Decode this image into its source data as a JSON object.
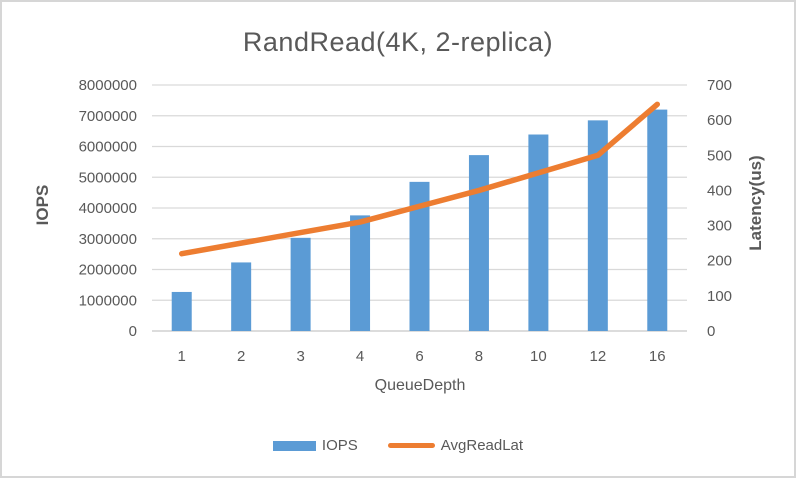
{
  "frame": {
    "background": "#ffffff",
    "border_color": "#d6d6d6"
  },
  "chart_data": {
    "type": "bar+line combo",
    "title": "RandRead(4K, 2-replica)",
    "categories": [
      "1",
      "2",
      "3",
      "4",
      "6",
      "8",
      "10",
      "12",
      "16"
    ],
    "xlabel": "QueueDepth",
    "series": [
      {
        "name": "IOPS",
        "type": "bar",
        "axis": "left",
        "color": "#5B9BD5",
        "values": [
          1270000,
          2230000,
          3030000,
          3760000,
          4850000,
          5720000,
          6390000,
          6850000,
          7200000
        ]
      },
      {
        "name": "AvgReadLat",
        "type": "line",
        "axis": "right",
        "color": "#ED7D31",
        "values": [
          220,
          250,
          280,
          310,
          355,
          400,
          450,
          500,
          645
        ]
      }
    ],
    "left_axis": {
      "title": "IOPS",
      "min": 0,
      "max": 8000000,
      "step": 1000000,
      "ticks": [
        "0",
        "1000000",
        "2000000",
        "3000000",
        "4000000",
        "5000000",
        "6000000",
        "7000000",
        "8000000"
      ]
    },
    "right_axis": {
      "title": "Latency(us)",
      "min": 0,
      "max": 700,
      "step": 100,
      "ticks": [
        "0",
        "100",
        "200",
        "300",
        "400",
        "500",
        "600",
        "700"
      ]
    },
    "legend": {
      "position": "bottom",
      "entries": [
        "IOPS",
        "AvgReadLat"
      ]
    },
    "grid": "horizontal",
    "styles": {
      "text_color": "#595959",
      "grid_color": "#D9D9D9",
      "baseline_color": "#C6C6C6",
      "tick_font_size": 15
    }
  }
}
